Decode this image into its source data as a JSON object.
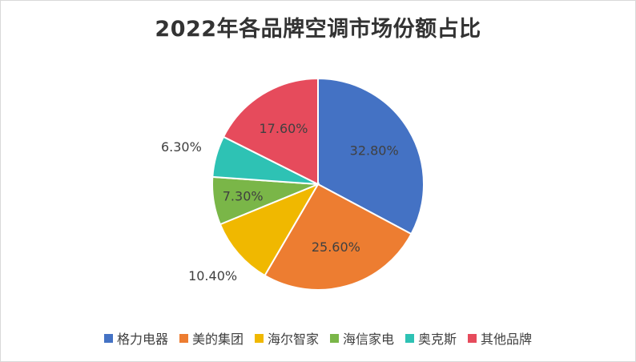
{
  "chart_data": {
    "type": "pie",
    "title": "2022年各品牌空调市场份额占比",
    "categories": [
      "格力电器",
      "美的集团",
      "海尔智家",
      "海信家电",
      "奥克斯",
      "其他品牌"
    ],
    "values": [
      32.8,
      25.6,
      10.4,
      7.3,
      6.3,
      17.6
    ],
    "labels": [
      "32.80%",
      "25.60%",
      "10.40%",
      "7.30%",
      "6.30%",
      "17.60%"
    ],
    "colors": [
      "#4472C4",
      "#ED7D31",
      "#F0B800",
      "#7AB648",
      "#2EC2B4",
      "#E64B5C"
    ],
    "legend_position": "bottom"
  }
}
